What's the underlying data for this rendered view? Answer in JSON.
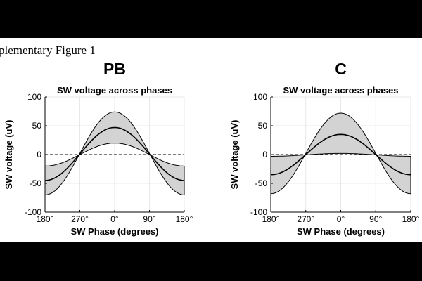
{
  "figure_caption": "plementary Figure 1",
  "colors": {
    "band_fill": "#d3d3d3",
    "line": "#000000",
    "grid": "#e2e2e2",
    "background": "#ffffff"
  },
  "chart_data": [
    {
      "type": "area",
      "panel_label": "PB",
      "title": "SW voltage across phases",
      "xlabel": "SW Phase (degrees)",
      "ylabel": "SW voltage (uV)",
      "x_tick_labels": [
        "180°",
        "270°",
        "0°",
        "90°",
        "180°"
      ],
      "x": [
        -180,
        -150,
        -120,
        -90,
        -60,
        -30,
        0,
        30,
        60,
        90,
        120,
        150,
        180
      ],
      "xlim": [
        -180,
        180
      ],
      "ylim": [
        -100,
        100
      ],
      "y_ticks": [
        -100,
        -50,
        0,
        50,
        100
      ],
      "zero_line": "dashed",
      "grid": true,
      "series": [
        {
          "name": "upper bound",
          "values": [
            -20,
            -17,
            -9,
            1,
            13,
            20,
            20,
            20,
            13,
            1,
            -9,
            -17,
            -20
          ]
        },
        {
          "name": "mean",
          "values": [
            -45,
            -38,
            -21,
            0,
            23,
            40,
            47,
            40,
            23,
            0,
            -21,
            -38,
            -45
          ]
        },
        {
          "name": "lower bound",
          "values": [
            -70,
            -61,
            -36,
            -1,
            35,
            63,
            74,
            63,
            35,
            -1,
            -36,
            -61,
            -70
          ]
        }
      ]
    },
    {
      "type": "area",
      "panel_label": "C",
      "title": "SW voltage across phases",
      "xlabel": "SW Phase (degrees)",
      "ylabel": "SW voltage (uV)",
      "x_tick_labels": [
        "180°",
        "270°",
        "0°",
        "90°",
        "180°"
      ],
      "x": [
        -180,
        -150,
        -120,
        -90,
        -60,
        -30,
        0,
        30,
        60,
        90,
        120,
        150,
        180
      ],
      "xlim": [
        -180,
        180
      ],
      "ylim": [
        -100,
        100
      ],
      "y_ticks": [
        -100,
        -50,
        0,
        50,
        100
      ],
      "zero_line": "dashed",
      "grid": true,
      "series": [
        {
          "name": "upper bound",
          "values": [
            -3,
            -3,
            -2,
            0,
            1,
            2,
            2,
            2,
            1,
            0,
            -2,
            -3,
            -3
          ]
        },
        {
          "name": "mean",
          "values": [
            -35,
            -30,
            -17,
            0,
            17,
            30,
            35,
            30,
            17,
            0,
            -17,
            -30,
            -35
          ]
        },
        {
          "name": "lower bound",
          "values": [
            -68,
            -59,
            -34,
            0,
            36,
            62,
            72,
            62,
            36,
            0,
            -34,
            -59,
            -68
          ]
        }
      ]
    }
  ]
}
